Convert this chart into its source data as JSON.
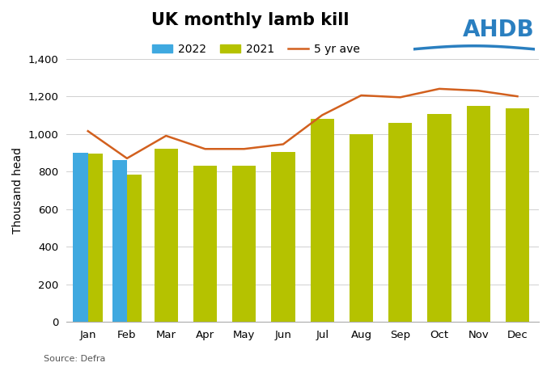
{
  "title": "UK monthly lamb kill",
  "ylabel": "Thousand head",
  "source": "Source: Defra",
  "months": [
    "Jan",
    "Feb",
    "Mar",
    "Apr",
    "May",
    "Jun",
    "Jul",
    "Aug",
    "Sep",
    "Oct",
    "Nov",
    "Dec"
  ],
  "data_2022": [
    900,
    860,
    null,
    null,
    null,
    null,
    null,
    null,
    null,
    null,
    null,
    null
  ],
  "data_2021": [
    895,
    785,
    920,
    830,
    830,
    905,
    1080,
    1000,
    1060,
    1105,
    1150,
    1135
  ],
  "data_5yr_ave": [
    1015,
    870,
    990,
    920,
    920,
    945,
    1100,
    1205,
    1195,
    1240,
    1230,
    1200
  ],
  "color_2022": "#3fa9e0",
  "color_2021": "#b5c200",
  "color_5yr_ave": "#d2601e",
  "ylim": [
    0,
    1400
  ],
  "yticks": [
    0,
    200,
    400,
    600,
    800,
    1000,
    1200,
    1400
  ],
  "background_color": "#ffffff",
  "title_fontsize": 15,
  "label_fontsize": 10,
  "tick_fontsize": 9.5
}
